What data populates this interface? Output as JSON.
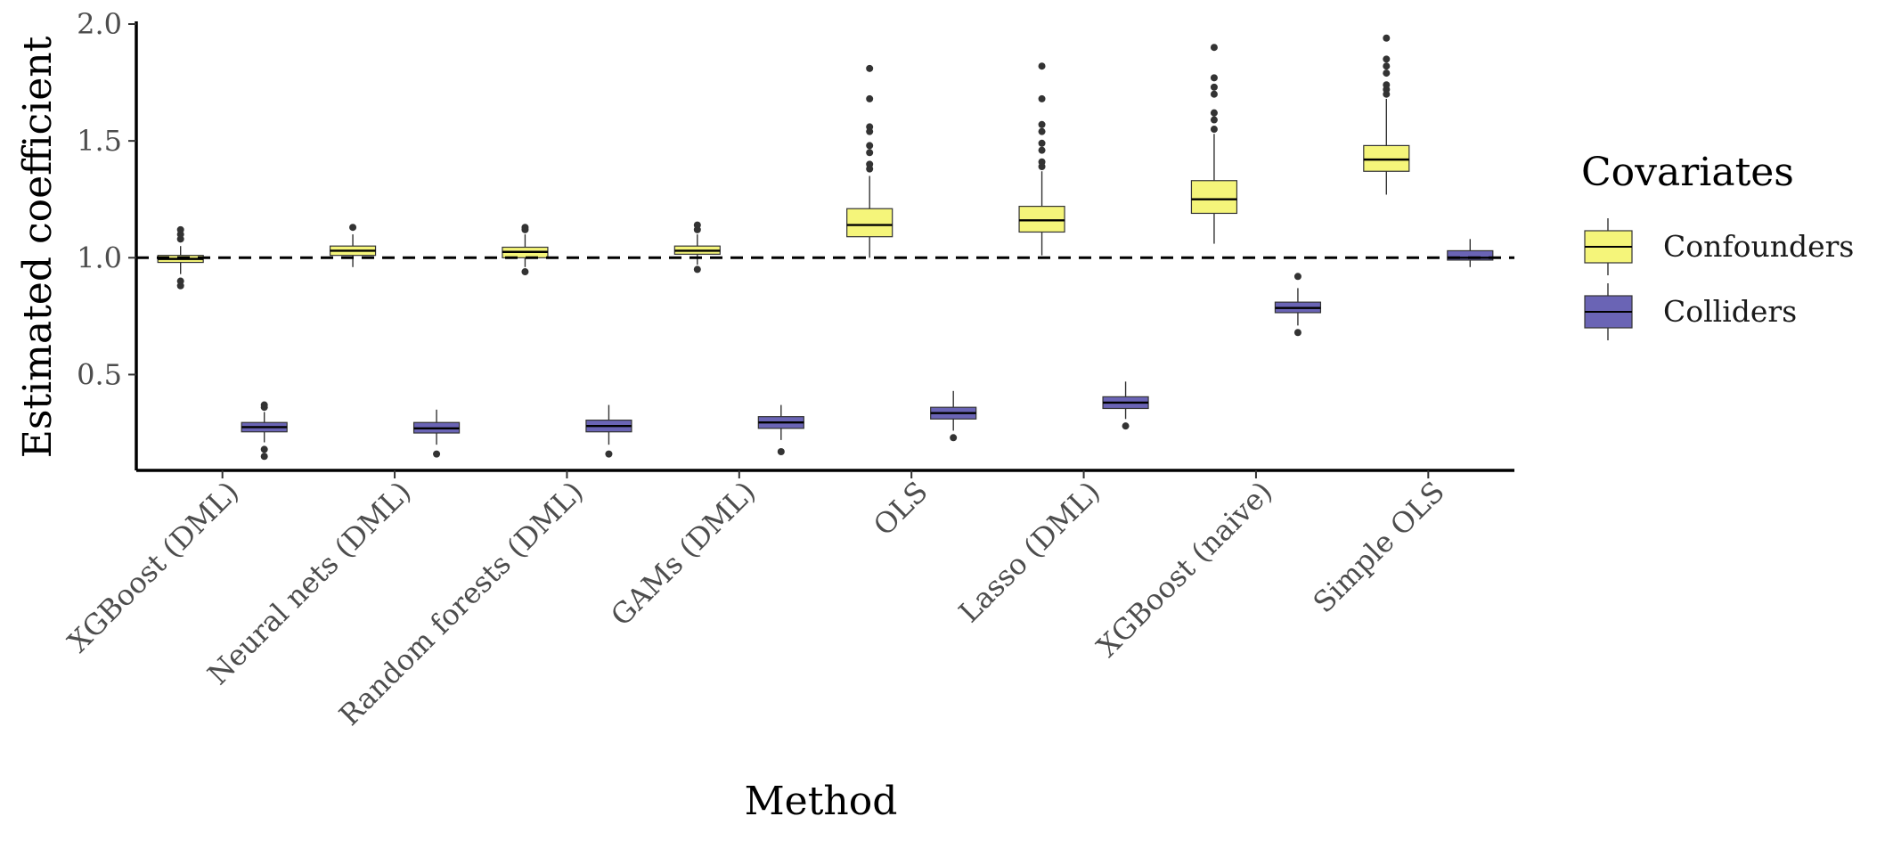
{
  "chart_data": {
    "type": "boxplot",
    "xlabel": "Method",
    "ylabel": "Estimated coefficient",
    "ylim": [
      0.09,
      2.0
    ],
    "yticks": [
      0.5,
      1.0,
      1.5,
      2.0
    ],
    "ytick_labels": [
      "0.5",
      "1.0",
      "1.5",
      "2.0"
    ],
    "reference_line": {
      "y": 1.0,
      "style": "dashed",
      "color": "#000000"
    },
    "grid": false,
    "legend": {
      "title": "Covariates",
      "placement": "right",
      "entries": [
        {
          "name": "Confounders",
          "color": "#f5f57a"
        },
        {
          "name": "Colliders",
          "color": "#6a64b5"
        }
      ]
    },
    "categories": [
      "XGBoost (DML)",
      "Neural nets (DML)",
      "Random forests (DML)",
      "GAMs (DML)",
      "OLS",
      "Lasso (DML)",
      "XGBoost (naive)",
      "Simple OLS"
    ],
    "series": [
      {
        "name": "Confounders",
        "color": "#f5f57a",
        "boxes": [
          {
            "category": "XGBoost (DML)",
            "whisker_low": 0.93,
            "q1": 0.98,
            "median": 0.995,
            "q3": 1.01,
            "whisker_high": 1.05,
            "outliers": [
              0.88,
              0.9,
              1.08,
              1.1,
              1.12
            ]
          },
          {
            "category": "Neural nets (DML)",
            "whisker_low": 0.96,
            "q1": 1.01,
            "median": 1.03,
            "q3": 1.05,
            "whisker_high": 1.1,
            "outliers": [
              1.13
            ]
          },
          {
            "category": "Random forests (DML)",
            "whisker_low": 0.96,
            "q1": 1.0,
            "median": 1.025,
            "q3": 1.045,
            "whisker_high": 1.1,
            "outliers": [
              0.94,
              1.12,
              1.13
            ]
          },
          {
            "category": "GAMs (DML)",
            "whisker_low": 0.97,
            "q1": 1.015,
            "median": 1.03,
            "q3": 1.05,
            "whisker_high": 1.1,
            "outliers": [
              0.95,
              1.12,
              1.14
            ]
          },
          {
            "category": "OLS",
            "whisker_low": 1.0,
            "q1": 1.09,
            "median": 1.14,
            "q3": 1.21,
            "whisker_high": 1.35,
            "outliers": [
              1.38,
              1.4,
              1.45,
              1.48,
              1.54,
              1.56,
              1.68,
              1.81
            ]
          },
          {
            "category": "Lasso (DML)",
            "whisker_low": 1.01,
            "q1": 1.11,
            "median": 1.16,
            "q3": 1.22,
            "whisker_high": 1.37,
            "outliers": [
              1.39,
              1.41,
              1.46,
              1.49,
              1.54,
              1.57,
              1.68,
              1.82
            ]
          },
          {
            "category": "XGBoost (naive)",
            "whisker_low": 1.06,
            "q1": 1.19,
            "median": 1.25,
            "q3": 1.33,
            "whisker_high": 1.53,
            "outliers": [
              1.55,
              1.59,
              1.62,
              1.7,
              1.73,
              1.77,
              1.9
            ]
          },
          {
            "category": "Simple OLS",
            "whisker_low": 1.27,
            "q1": 1.37,
            "median": 1.42,
            "q3": 1.48,
            "whisker_high": 1.68,
            "outliers": [
              1.7,
              1.72,
              1.74,
              1.79,
              1.82,
              1.85,
              1.94
            ]
          }
        ]
      },
      {
        "name": "Colliders",
        "color": "#6a64b5",
        "boxes": [
          {
            "category": "XGBoost (DML)",
            "whisker_low": 0.21,
            "q1": 0.255,
            "median": 0.275,
            "q3": 0.295,
            "whisker_high": 0.34,
            "outliers": [
              0.15,
              0.18,
              0.36,
              0.37
            ]
          },
          {
            "category": "Neural nets (DML)",
            "whisker_low": 0.2,
            "q1": 0.25,
            "median": 0.27,
            "q3": 0.295,
            "whisker_high": 0.35,
            "outliers": [
              0.16
            ]
          },
          {
            "category": "Random forests (DML)",
            "whisker_low": 0.2,
            "q1": 0.255,
            "median": 0.28,
            "q3": 0.305,
            "whisker_high": 0.37,
            "outliers": [
              0.16
            ]
          },
          {
            "category": "GAMs (DML)",
            "whisker_low": 0.22,
            "q1": 0.27,
            "median": 0.295,
            "q3": 0.32,
            "whisker_high": 0.37,
            "outliers": [
              0.17
            ]
          },
          {
            "category": "OLS",
            "whisker_low": 0.26,
            "q1": 0.31,
            "median": 0.335,
            "q3": 0.36,
            "whisker_high": 0.43,
            "outliers": [
              0.23
            ]
          },
          {
            "category": "Lasso (DML)",
            "whisker_low": 0.31,
            "q1": 0.355,
            "median": 0.38,
            "q3": 0.405,
            "whisker_high": 0.47,
            "outliers": [
              0.28
            ]
          },
          {
            "category": "XGBoost (naive)",
            "whisker_low": 0.71,
            "q1": 0.765,
            "median": 0.785,
            "q3": 0.81,
            "whisker_high": 0.87,
            "outliers": [
              0.68,
              0.92
            ]
          },
          {
            "category": "Simple OLS",
            "whisker_low": 0.96,
            "q1": 0.99,
            "median": 1.0,
            "q3": 1.03,
            "whisker_high": 1.08,
            "outliers": []
          }
        ]
      }
    ]
  }
}
